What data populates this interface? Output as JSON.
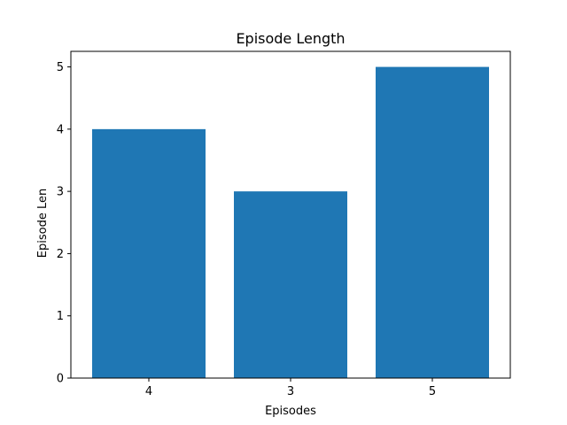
{
  "chart_data": {
    "type": "bar",
    "title": "Episode Length",
    "xlabel": "Episodes",
    "ylabel": "Episode Len",
    "categories": [
      "4",
      "3",
      "5"
    ],
    "values": [
      4,
      3,
      5
    ],
    "ylim": [
      0,
      5.25
    ],
    "yticks": [
      "0",
      "1",
      "2",
      "3",
      "4",
      "5"
    ],
    "grid": false,
    "legend": "none",
    "bar_color": "#1f77b4"
  }
}
